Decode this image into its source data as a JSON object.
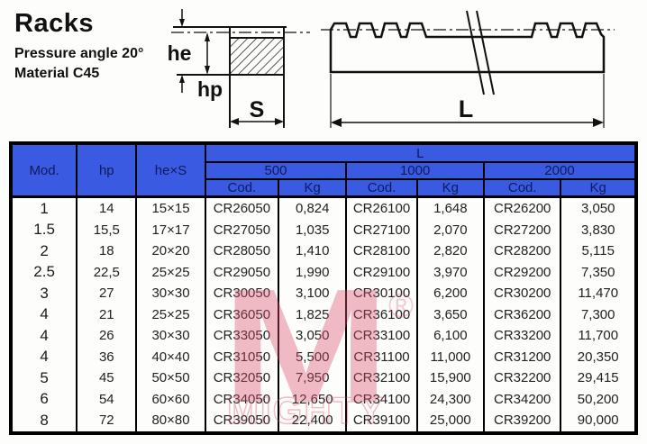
{
  "header": {
    "title": "Racks",
    "pressure_angle": "Pressure angle 20°",
    "material": "Material C45"
  },
  "diagram": {
    "labels": {
      "he": "he",
      "hp": "hp",
      "s": "S",
      "l": "L"
    }
  },
  "table": {
    "col_mod": "Mod.",
    "col_hp": "hp",
    "col_hexs": "he×S",
    "col_l": "L",
    "lengths": [
      "500",
      "1000",
      "2000"
    ],
    "col_cod": "Cod.",
    "col_kg": "Kg",
    "rows": [
      [
        "1",
        "14",
        "15×15",
        "CR26050",
        "0,824",
        "CR26100",
        "1,648",
        "CR26200",
        "3,050"
      ],
      [
        "1.5",
        "15,5",
        "17×17",
        "CR27050",
        "1,035",
        "CR27100",
        "2,070",
        "CR27200",
        "3,830"
      ],
      [
        "2",
        "18",
        "20×20",
        "CR28050",
        "1,410",
        "CR28100",
        "2,820",
        "CR28200",
        "5,115"
      ],
      [
        "2.5",
        "22,5",
        "25×25",
        "CR29050",
        "1,990",
        "CR29100",
        "3,970",
        "CR29200",
        "7,350"
      ],
      [
        "3",
        "27",
        "30×30",
        "CR30050",
        "3,100",
        "CR30100",
        "6,200",
        "CR30200",
        "11,470"
      ],
      [
        "4",
        "21",
        "25×25",
        "CR36050",
        "1,825",
        "CR36100",
        "3,650",
        "CR36200",
        "7,300"
      ],
      [
        "4",
        "26",
        "30×30",
        "CR33050",
        "3,050",
        "CR33100",
        "6,100",
        "CR33200",
        "11,700"
      ],
      [
        "4",
        "36",
        "40×40",
        "CR31050",
        "5,500",
        "CR31100",
        "11,000",
        "CR31200",
        "20,350"
      ],
      [
        "5",
        "45",
        "50×50",
        "CR32050",
        "7,950",
        "CR32100",
        "15,900",
        "CR32200",
        "29,415"
      ],
      [
        "6",
        "54",
        "60×60",
        "CR34050",
        "12,650",
        "CR34100",
        "24,300",
        "CR34200",
        "50,200"
      ],
      [
        "8",
        "72",
        "80×80",
        "CR39050",
        "22,400",
        "CR39100",
        "25,000",
        "CR39200",
        "90,000"
      ]
    ]
  },
  "watermark": {
    "letter": "M",
    "registered": "®",
    "brand": "MIGHTY",
    "color": "#d94f69"
  },
  "colors": {
    "header_bg": "#3a5ae1",
    "header_text": "#0f1a5c",
    "border": "#000000",
    "page_bg": "#fdfdfc"
  }
}
